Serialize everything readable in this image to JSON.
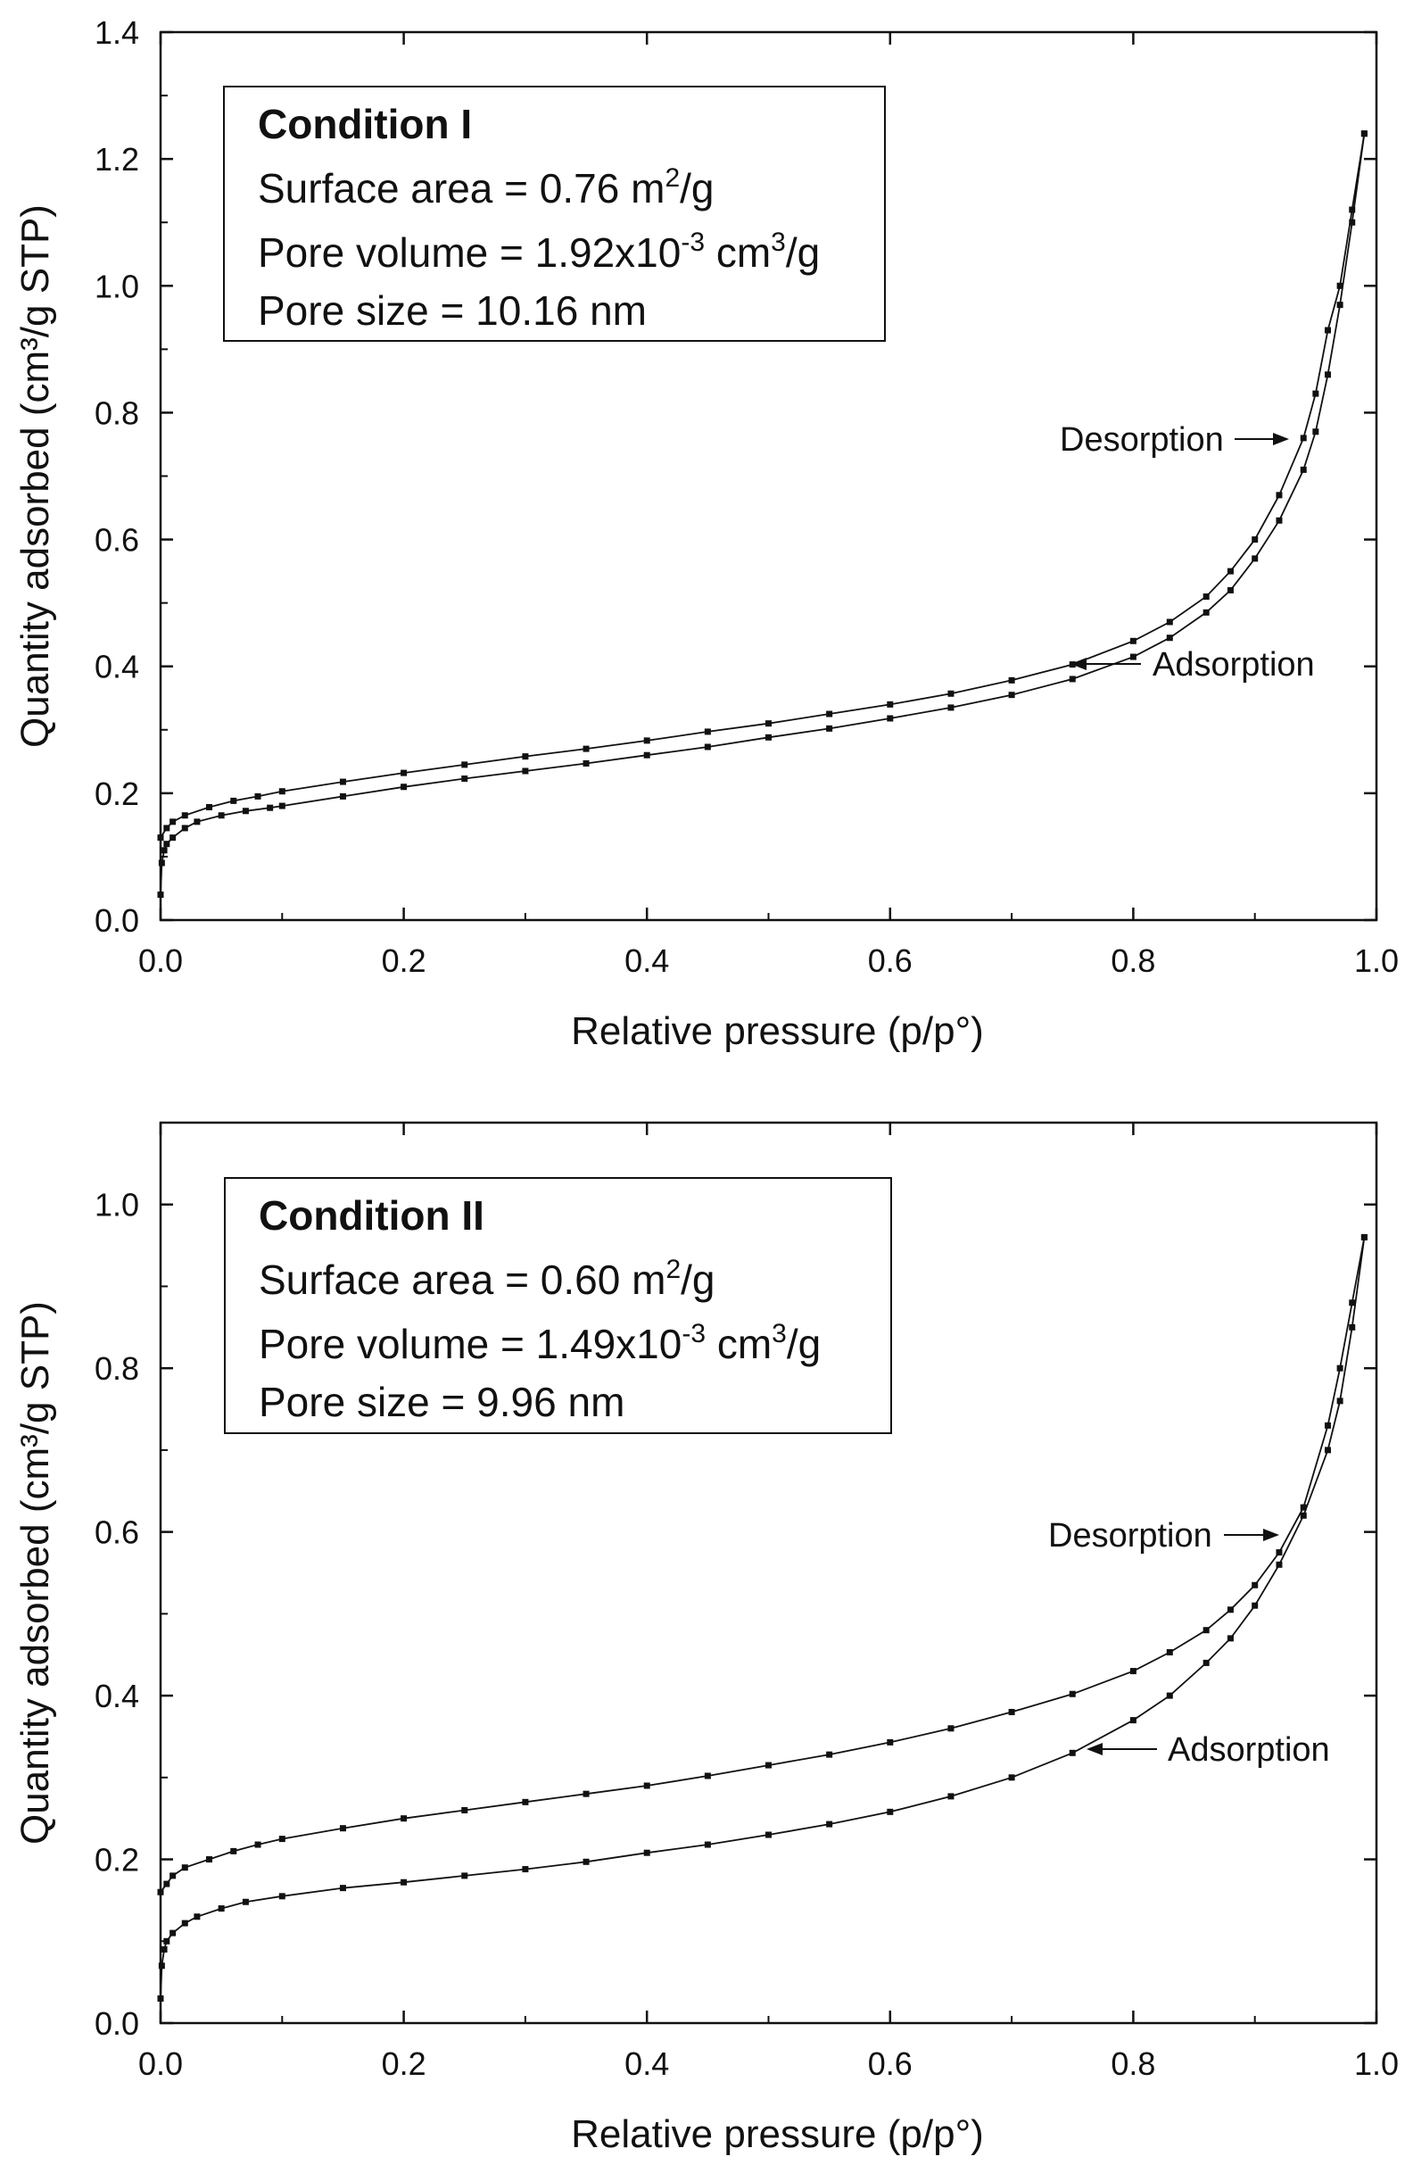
{
  "chart_data": [
    {
      "type": "line",
      "xlabel": "Relative pressure (p/p°)",
      "ylabel": "Quantity adsorbed (cm³/g STP)",
      "xlim": [
        0.0,
        1.0
      ],
      "ylim": [
        0.0,
        1.4
      ],
      "xticks": [
        0.0,
        0.2,
        0.4,
        0.6,
        0.8,
        1.0
      ],
      "xtick_labels": [
        "0.0",
        "0.2",
        "0.4",
        "0.6",
        "0.8",
        "1.0"
      ],
      "yticks": [
        0.0,
        0.2,
        0.4,
        0.6,
        0.8,
        1.0,
        1.2,
        1.4
      ],
      "ytick_labels": [
        "0.0",
        "0.2",
        "0.4",
        "0.6",
        "0.8",
        "1.0",
        "1.2",
        "1.4"
      ],
      "info": {
        "title": "Condition I",
        "surface_area": {
          "prefix": "Surface area = 0.76 m",
          "sup": "2",
          "suffix": "/g"
        },
        "pore_volume": {
          "prefix": "Pore volume = 1.92x10",
          "sup1": "-3",
          "mid": " cm",
          "sup2": "3",
          "suffix": "/g"
        },
        "pore_size": "Pore size = 10.16 nm"
      },
      "series": [
        {
          "name": "Desorption",
          "label": "Desorption",
          "points": [
            [
              0.0,
              0.13
            ],
            [
              0.005,
              0.145
            ],
            [
              0.01,
              0.155
            ],
            [
              0.02,
              0.165
            ],
            [
              0.04,
              0.178
            ],
            [
              0.06,
              0.188
            ],
            [
              0.08,
              0.195
            ],
            [
              0.1,
              0.203
            ],
            [
              0.15,
              0.218
            ],
            [
              0.2,
              0.232
            ],
            [
              0.25,
              0.245
            ],
            [
              0.3,
              0.258
            ],
            [
              0.35,
              0.27
            ],
            [
              0.4,
              0.283
            ],
            [
              0.45,
              0.297
            ],
            [
              0.5,
              0.31
            ],
            [
              0.55,
              0.325
            ],
            [
              0.6,
              0.34
            ],
            [
              0.65,
              0.357
            ],
            [
              0.7,
              0.378
            ],
            [
              0.75,
              0.403
            ],
            [
              0.8,
              0.44
            ],
            [
              0.83,
              0.47
            ],
            [
              0.86,
              0.51
            ],
            [
              0.88,
              0.55
            ],
            [
              0.9,
              0.6
            ],
            [
              0.92,
              0.67
            ],
            [
              0.94,
              0.76
            ],
            [
              0.95,
              0.83
            ],
            [
              0.96,
              0.93
            ],
            [
              0.97,
              1.0
            ],
            [
              0.98,
              1.12
            ],
            [
              0.99,
              1.24
            ]
          ]
        },
        {
          "name": "Adsorption",
          "label": "Adsorption",
          "points": [
            [
              0.0,
              0.04
            ],
            [
              0.001,
              0.09
            ],
            [
              0.003,
              0.11
            ],
            [
              0.005,
              0.12
            ],
            [
              0.01,
              0.13
            ],
            [
              0.02,
              0.145
            ],
            [
              0.03,
              0.155
            ],
            [
              0.05,
              0.165
            ],
            [
              0.07,
              0.172
            ],
            [
              0.09,
              0.177
            ],
            [
              0.1,
              0.18
            ],
            [
              0.15,
              0.195
            ],
            [
              0.2,
              0.21
            ],
            [
              0.25,
              0.223
            ],
            [
              0.3,
              0.235
            ],
            [
              0.35,
              0.247
            ],
            [
              0.4,
              0.26
            ],
            [
              0.45,
              0.273
            ],
            [
              0.5,
              0.288
            ],
            [
              0.55,
              0.302
            ],
            [
              0.6,
              0.318
            ],
            [
              0.65,
              0.335
            ],
            [
              0.7,
              0.355
            ],
            [
              0.75,
              0.38
            ],
            [
              0.8,
              0.415
            ],
            [
              0.83,
              0.445
            ],
            [
              0.86,
              0.485
            ],
            [
              0.88,
              0.52
            ],
            [
              0.9,
              0.57
            ],
            [
              0.92,
              0.63
            ],
            [
              0.94,
              0.71
            ],
            [
              0.95,
              0.77
            ],
            [
              0.96,
              0.86
            ],
            [
              0.97,
              0.97
            ],
            [
              0.98,
              1.1
            ],
            [
              0.99,
              1.24
            ]
          ]
        }
      ]
    },
    {
      "type": "line",
      "xlabel": "Relative pressure (p/p°)",
      "ylabel": "Quantity adsorbed (cm³/g STP)",
      "xlim": [
        0.0,
        1.0
      ],
      "ylim": [
        0.0,
        1.1
      ],
      "xticks": [
        0.0,
        0.2,
        0.4,
        0.6,
        0.8,
        1.0
      ],
      "xtick_labels": [
        "0.0",
        "0.2",
        "0.4",
        "0.6",
        "0.8",
        "1.0"
      ],
      "yticks": [
        0.0,
        0.2,
        0.4,
        0.6,
        0.8,
        1.0
      ],
      "ytick_labels": [
        "0.0",
        "0.2",
        "0.4",
        "0.6",
        "0.8",
        "1.0"
      ],
      "info": {
        "title": "Condition II",
        "surface_area": {
          "prefix": "Surface area = 0.60 m",
          "sup": "2",
          "suffix": "/g"
        },
        "pore_volume": {
          "prefix": "Pore volume = 1.49x10",
          "sup1": "-3",
          "mid": " cm",
          "sup2": "3",
          "suffix": "/g"
        },
        "pore_size": "Pore size = 9.96 nm"
      },
      "series": [
        {
          "name": "Desorption",
          "label": "Desorption",
          "points": [
            [
              0.0,
              0.16
            ],
            [
              0.005,
              0.17
            ],
            [
              0.01,
              0.18
            ],
            [
              0.02,
              0.19
            ],
            [
              0.04,
              0.2
            ],
            [
              0.06,
              0.21
            ],
            [
              0.08,
              0.218
            ],
            [
              0.1,
              0.225
            ],
            [
              0.15,
              0.238
            ],
            [
              0.2,
              0.25
            ],
            [
              0.25,
              0.26
            ],
            [
              0.3,
              0.27
            ],
            [
              0.35,
              0.28
            ],
            [
              0.4,
              0.29
            ],
            [
              0.45,
              0.302
            ],
            [
              0.5,
              0.315
            ],
            [
              0.55,
              0.328
            ],
            [
              0.6,
              0.343
            ],
            [
              0.65,
              0.36
            ],
            [
              0.7,
              0.38
            ],
            [
              0.75,
              0.402
            ],
            [
              0.8,
              0.43
            ],
            [
              0.83,
              0.453
            ],
            [
              0.86,
              0.48
            ],
            [
              0.88,
              0.505
            ],
            [
              0.9,
              0.535
            ],
            [
              0.92,
              0.575
            ],
            [
              0.94,
              0.63
            ],
            [
              0.96,
              0.73
            ],
            [
              0.97,
              0.8
            ],
            [
              0.98,
              0.88
            ],
            [
              0.99,
              0.96
            ]
          ]
        },
        {
          "name": "Adsorption",
          "label": "Adsorption",
          "points": [
            [
              0.0,
              0.03
            ],
            [
              0.001,
              0.07
            ],
            [
              0.003,
              0.09
            ],
            [
              0.005,
              0.1
            ],
            [
              0.01,
              0.11
            ],
            [
              0.02,
              0.122
            ],
            [
              0.03,
              0.13
            ],
            [
              0.05,
              0.14
            ],
            [
              0.07,
              0.148
            ],
            [
              0.1,
              0.155
            ],
            [
              0.15,
              0.165
            ],
            [
              0.2,
              0.172
            ],
            [
              0.25,
              0.18
            ],
            [
              0.3,
              0.188
            ],
            [
              0.35,
              0.197
            ],
            [
              0.4,
              0.208
            ],
            [
              0.45,
              0.218
            ],
            [
              0.5,
              0.23
            ],
            [
              0.55,
              0.243
            ],
            [
              0.6,
              0.258
            ],
            [
              0.65,
              0.277
            ],
            [
              0.7,
              0.3
            ],
            [
              0.75,
              0.33
            ],
            [
              0.8,
              0.37
            ],
            [
              0.83,
              0.4
            ],
            [
              0.86,
              0.44
            ],
            [
              0.88,
              0.47
            ],
            [
              0.9,
              0.51
            ],
            [
              0.92,
              0.56
            ],
            [
              0.94,
              0.62
            ],
            [
              0.96,
              0.7
            ],
            [
              0.97,
              0.76
            ],
            [
              0.98,
              0.85
            ],
            [
              0.99,
              0.96
            ]
          ]
        }
      ]
    }
  ]
}
